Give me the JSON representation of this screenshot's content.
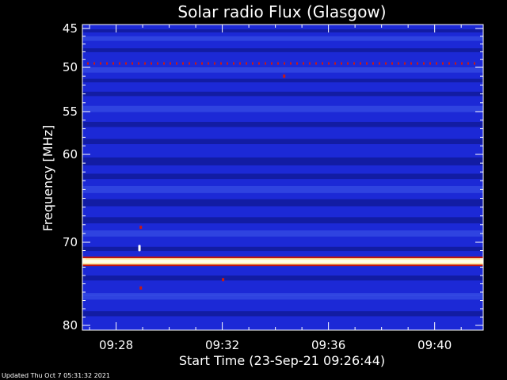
{
  "chart_data": {
    "type": "heatmap",
    "title": "Solar radio Flux (Glasgow)",
    "xlabel": "Start Time (23-Sep-21 09:26:44)",
    "ylabel": "Frequency [MHz]",
    "x_ticks": [
      "09:28",
      "09:32",
      "09:36",
      "09:40"
    ],
    "x_tick_minutes": [
      1.27,
      5.27,
      9.27,
      13.27
    ],
    "x_range_minutes": [
      0,
      15.1
    ],
    "y_ticks": [
      45,
      50,
      55,
      60,
      70,
      80
    ],
    "y_range_mhz": [
      45,
      80
    ],
    "y_scale": "nonlinear",
    "colors": {
      "background": "#000000",
      "base": "#1c29d6",
      "dark_band": "#101a9a",
      "light_band": "#3248e2",
      "rfi_line": "#ffe9a0",
      "rfi_core": "#ffffe6",
      "rfi_edge": "#c0140a",
      "spots": "#cc1a10"
    },
    "bands": [
      {
        "f": 45.3,
        "w": 0.4,
        "kind": "dark"
      },
      {
        "f": 46.3,
        "w": 0.6,
        "kind": "light"
      },
      {
        "f": 47.8,
        "w": 0.5,
        "kind": "dark"
      },
      {
        "f": 50.3,
        "w": 0.6,
        "kind": "light"
      },
      {
        "f": 51.5,
        "w": 0.4,
        "kind": "dark"
      },
      {
        "f": 53.0,
        "w": 0.5,
        "kind": "dark"
      },
      {
        "f": 54.7,
        "w": 0.7,
        "kind": "light"
      },
      {
        "f": 56.5,
        "w": 0.6,
        "kind": "dark"
      },
      {
        "f": 58.5,
        "w": 0.6,
        "kind": "dark"
      },
      {
        "f": 60.8,
        "w": 0.9,
        "kind": "dark"
      },
      {
        "f": 62.5,
        "w": 0.6,
        "kind": "dark"
      },
      {
        "f": 64.0,
        "w": 0.8,
        "kind": "light"
      },
      {
        "f": 65.5,
        "w": 0.8,
        "kind": "dark"
      },
      {
        "f": 67.5,
        "w": 0.7,
        "kind": "dark"
      },
      {
        "f": 69.0,
        "w": 0.7,
        "kind": "light"
      },
      {
        "f": 70.8,
        "w": 0.5,
        "kind": "dark"
      },
      {
        "f": 74.3,
        "w": 0.6,
        "kind": "dark"
      },
      {
        "f": 76.5,
        "w": 0.8,
        "kind": "light"
      },
      {
        "f": 78.6,
        "w": 0.6,
        "kind": "dark"
      }
    ],
    "dotted_line_mhz": 49.5,
    "rfi_line_mhz": 72.3,
    "spots": [
      {
        "t": 7.6,
        "f": 51.0
      },
      {
        "t": 5.3,
        "f": 74.5
      },
      {
        "t": 2.2,
        "f": 75.5
      },
      {
        "t": 2.2,
        "f": 68.3
      }
    ],
    "white_blip": {
      "t": 2.15,
      "f": 70.7
    }
  },
  "footer": {
    "updated": "Updated Thu Oct  7 05:31:32 2021"
  }
}
